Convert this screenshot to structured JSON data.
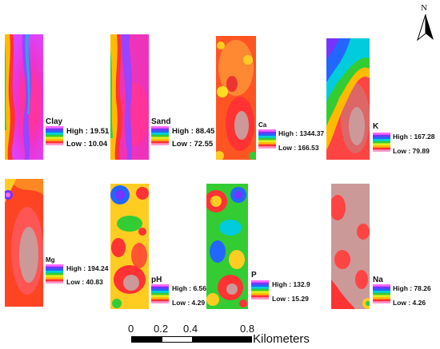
{
  "north_arrow": {
    "label": "N"
  },
  "legend_ramp": [
    "#ff66ff",
    "#7733ff",
    "#2266ff",
    "#00ccdd",
    "#33cc33",
    "#ddee22",
    "#ffbb00",
    "#ff3333",
    "#ff99cc"
  ],
  "panels": [
    {
      "name": "Clay",
      "high": "High : 19.51",
      "low": "Low : 10.04"
    },
    {
      "name": "Sand",
      "high": "High : 88.45",
      "low": "Low : 72.55"
    },
    {
      "name": "Ca",
      "high": "High : 1344.37",
      "low": "Low : 166.53"
    },
    {
      "name": "K",
      "high": "High : 167.28",
      "low": "Low : 79.89"
    },
    {
      "name": "Mg",
      "high": "High : 194.24",
      "low": "Low : 40.83"
    },
    {
      "name": "pH",
      "high": "High : 6.56",
      "low": "Low : 4.29"
    },
    {
      "name": "P",
      "high": "High : 132.9",
      "low": "Low : 15.29"
    },
    {
      "name": "Na",
      "high": "High : 78.26",
      "low": "Low : 4.26"
    }
  ],
  "scale_bar": {
    "ticks": [
      "0",
      "0.2",
      "0.4",
      "0.8"
    ],
    "units": "Kilometers"
  }
}
